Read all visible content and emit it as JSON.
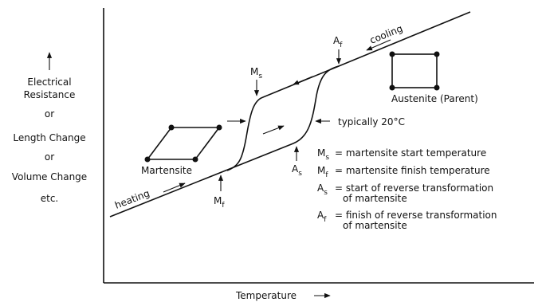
{
  "y_axis_label": [
    "Electrical",
    "Resistance",
    "or",
    "Length Change",
    "or",
    "Volume Change",
    "etc."
  ],
  "x_axis_label": "Temperature",
  "curve_labels": {
    "cooling": "cooling",
    "heating": "heating"
  },
  "phases": {
    "austenite": "Austenite (Parent)",
    "martensite": "Martensite"
  },
  "points": {
    "ms": {
      "symbol": "M",
      "subscript": "s"
    },
    "mf": {
      "symbol": "M",
      "subscript": "f"
    },
    "as": {
      "symbol": "A",
      "subscript": "s"
    },
    "af": {
      "symbol": "A",
      "subscript": "f"
    }
  },
  "reference": "typically 20°C",
  "definitions": [
    {
      "symbol": "M",
      "subscript": "s",
      "lines": [
        "= martensite start temperature"
      ]
    },
    {
      "symbol": "M",
      "subscript": "f",
      "lines": [
        "= martensite finish temperature"
      ]
    },
    {
      "symbol": "A",
      "subscript": "s",
      "lines": [
        "= start of reverse transformation",
        "of martensite"
      ]
    },
    {
      "symbol": "A",
      "subscript": "f",
      "lines": [
        "= finish of reverse transformation",
        "of martensite"
      ]
    }
  ]
}
